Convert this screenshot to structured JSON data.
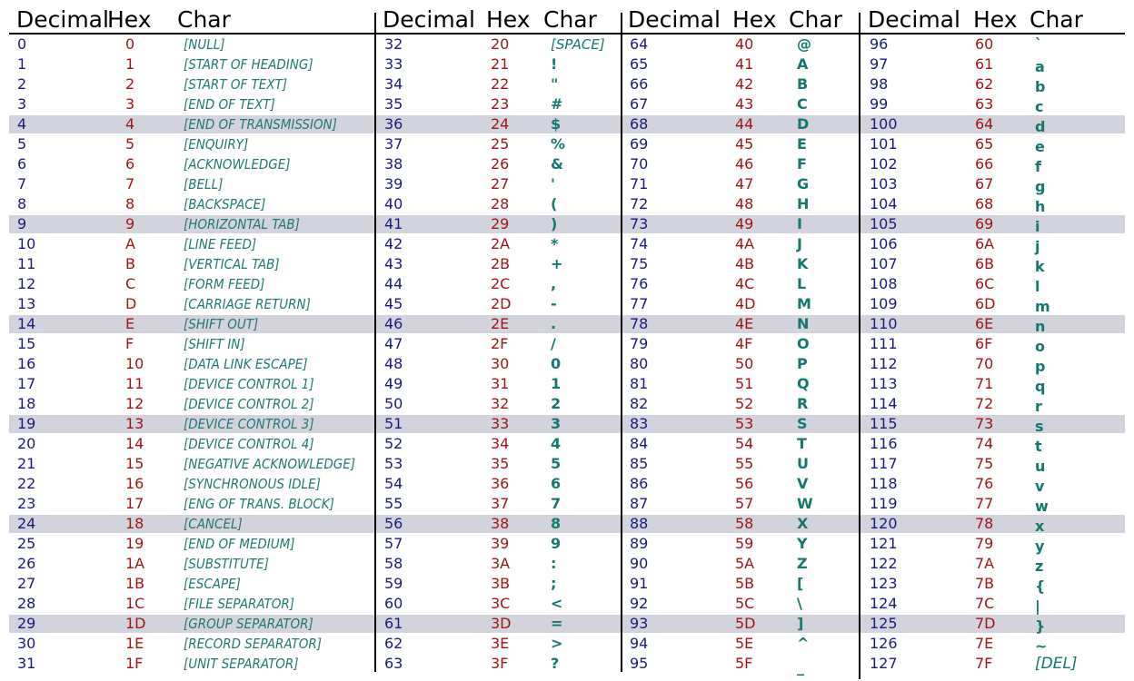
{
  "header": {
    "decimal": "Decimal",
    "hex": "Hex",
    "char": "Char"
  },
  "colors": {
    "decimal": "#1a1a80",
    "hex": "#a31515",
    "char": "#127870",
    "band": "#d3d3de"
  },
  "table": [
    [
      {
        "dec": "0",
        "hex": "0",
        "char": "[NULL]"
      },
      {
        "dec": "1",
        "hex": "1",
        "char": "[START OF HEADING]"
      },
      {
        "dec": "2",
        "hex": "2",
        "char": "[START OF TEXT]"
      },
      {
        "dec": "3",
        "hex": "3",
        "char": "[END OF TEXT]"
      },
      {
        "dec": "4",
        "hex": "4",
        "char": "[END OF TRANSMISSION]"
      },
      {
        "dec": "5",
        "hex": "5",
        "char": "[ENQUIRY]"
      },
      {
        "dec": "6",
        "hex": "6",
        "char": "[ACKNOWLEDGE]"
      },
      {
        "dec": "7",
        "hex": "7",
        "char": "[BELL]"
      },
      {
        "dec": "8",
        "hex": "8",
        "char": "[BACKSPACE]"
      },
      {
        "dec": "9",
        "hex": "9",
        "char": "[HORIZONTAL TAB]"
      },
      {
        "dec": "10",
        "hex": "A",
        "char": "[LINE FEED]"
      },
      {
        "dec": "11",
        "hex": "B",
        "char": "[VERTICAL TAB]"
      },
      {
        "dec": "12",
        "hex": "C",
        "char": "[FORM FEED]"
      },
      {
        "dec": "13",
        "hex": "D",
        "char": "[CARRIAGE RETURN]"
      },
      {
        "dec": "14",
        "hex": "E",
        "char": "[SHIFT OUT]"
      },
      {
        "dec": "15",
        "hex": "F",
        "char": "[SHIFT IN]"
      },
      {
        "dec": "16",
        "hex": "10",
        "char": "[DATA LINK ESCAPE]"
      },
      {
        "dec": "17",
        "hex": "11",
        "char": "[DEVICE CONTROL 1]"
      },
      {
        "dec": "18",
        "hex": "12",
        "char": "[DEVICE CONTROL 2]"
      },
      {
        "dec": "19",
        "hex": "13",
        "char": "[DEVICE CONTROL 3]"
      },
      {
        "dec": "20",
        "hex": "14",
        "char": "[DEVICE CONTROL 4]"
      },
      {
        "dec": "21",
        "hex": "15",
        "char": "[NEGATIVE ACKNOWLEDGE]"
      },
      {
        "dec": "22",
        "hex": "16",
        "char": "[SYNCHRONOUS IDLE]"
      },
      {
        "dec": "23",
        "hex": "17",
        "char": "[ENG OF TRANS. BLOCK]"
      },
      {
        "dec": "24",
        "hex": "18",
        "char": "[CANCEL]"
      },
      {
        "dec": "25",
        "hex": "19",
        "char": "[END OF MEDIUM]"
      },
      {
        "dec": "26",
        "hex": "1A",
        "char": "[SUBSTITUTE]"
      },
      {
        "dec": "27",
        "hex": "1B",
        "char": "[ESCAPE]"
      },
      {
        "dec": "28",
        "hex": "1C",
        "char": "[FILE SEPARATOR]"
      },
      {
        "dec": "29",
        "hex": "1D",
        "char": "[GROUP SEPARATOR]"
      },
      {
        "dec": "30",
        "hex": "1E",
        "char": "[RECORD SEPARATOR]"
      },
      {
        "dec": "31",
        "hex": "1F",
        "char": "[UNIT SEPARATOR]"
      }
    ],
    [
      {
        "dec": "32",
        "hex": "20",
        "char": "[SPACE]"
      },
      {
        "dec": "33",
        "hex": "21",
        "char": "!"
      },
      {
        "dec": "34",
        "hex": "22",
        "char": "\""
      },
      {
        "dec": "35",
        "hex": "23",
        "char": "#"
      },
      {
        "dec": "36",
        "hex": "24",
        "char": "$"
      },
      {
        "dec": "37",
        "hex": "25",
        "char": "%"
      },
      {
        "dec": "38",
        "hex": "26",
        "char": "&"
      },
      {
        "dec": "39",
        "hex": "27",
        "char": "'"
      },
      {
        "dec": "40",
        "hex": "28",
        "char": "("
      },
      {
        "dec": "41",
        "hex": "29",
        "char": ")"
      },
      {
        "dec": "42",
        "hex": "2A",
        "char": "*"
      },
      {
        "dec": "43",
        "hex": "2B",
        "char": "+"
      },
      {
        "dec": "44",
        "hex": "2C",
        "char": ","
      },
      {
        "dec": "45",
        "hex": "2D",
        "char": "-"
      },
      {
        "dec": "46",
        "hex": "2E",
        "char": "."
      },
      {
        "dec": "47",
        "hex": "2F",
        "char": "/"
      },
      {
        "dec": "48",
        "hex": "30",
        "char": "0"
      },
      {
        "dec": "49",
        "hex": "31",
        "char": "1"
      },
      {
        "dec": "50",
        "hex": "32",
        "char": "2"
      },
      {
        "dec": "51",
        "hex": "33",
        "char": "3"
      },
      {
        "dec": "52",
        "hex": "34",
        "char": "4"
      },
      {
        "dec": "53",
        "hex": "35",
        "char": "5"
      },
      {
        "dec": "54",
        "hex": "36",
        "char": "6"
      },
      {
        "dec": "55",
        "hex": "37",
        "char": "7"
      },
      {
        "dec": "56",
        "hex": "38",
        "char": "8"
      },
      {
        "dec": "57",
        "hex": "39",
        "char": "9"
      },
      {
        "dec": "58",
        "hex": "3A",
        "char": ":"
      },
      {
        "dec": "59",
        "hex": "3B",
        "char": ";"
      },
      {
        "dec": "60",
        "hex": "3C",
        "char": "<"
      },
      {
        "dec": "61",
        "hex": "3D",
        "char": "="
      },
      {
        "dec": "62",
        "hex": "3E",
        "char": ">"
      },
      {
        "dec": "63",
        "hex": "3F",
        "char": "?"
      }
    ],
    [
      {
        "dec": "64",
        "hex": "40",
        "char": "@"
      },
      {
        "dec": "65",
        "hex": "41",
        "char": "A"
      },
      {
        "dec": "66",
        "hex": "42",
        "char": "B"
      },
      {
        "dec": "67",
        "hex": "43",
        "char": "C"
      },
      {
        "dec": "68",
        "hex": "44",
        "char": "D"
      },
      {
        "dec": "69",
        "hex": "45",
        "char": "E"
      },
      {
        "dec": "70",
        "hex": "46",
        "char": "F"
      },
      {
        "dec": "71",
        "hex": "47",
        "char": "G"
      },
      {
        "dec": "72",
        "hex": "48",
        "char": "H"
      },
      {
        "dec": "73",
        "hex": "49",
        "char": "I"
      },
      {
        "dec": "74",
        "hex": "4A",
        "char": "J"
      },
      {
        "dec": "75",
        "hex": "4B",
        "char": "K"
      },
      {
        "dec": "76",
        "hex": "4C",
        "char": "L"
      },
      {
        "dec": "77",
        "hex": "4D",
        "char": "M"
      },
      {
        "dec": "78",
        "hex": "4E",
        "char": "N"
      },
      {
        "dec": "79",
        "hex": "4F",
        "char": "O"
      },
      {
        "dec": "80",
        "hex": "50",
        "char": "P"
      },
      {
        "dec": "81",
        "hex": "51",
        "char": "Q"
      },
      {
        "dec": "82",
        "hex": "52",
        "char": "R"
      },
      {
        "dec": "83",
        "hex": "53",
        "char": "S"
      },
      {
        "dec": "84",
        "hex": "54",
        "char": "T"
      },
      {
        "dec": "85",
        "hex": "55",
        "char": "U"
      },
      {
        "dec": "86",
        "hex": "56",
        "char": "V"
      },
      {
        "dec": "87",
        "hex": "57",
        "char": "W"
      },
      {
        "dec": "88",
        "hex": "58",
        "char": "X"
      },
      {
        "dec": "89",
        "hex": "59",
        "char": "Y"
      },
      {
        "dec": "90",
        "hex": "5A",
        "char": "Z"
      },
      {
        "dec": "91",
        "hex": "5B",
        "char": "["
      },
      {
        "dec": "92",
        "hex": "5C",
        "char": "\\"
      },
      {
        "dec": "93",
        "hex": "5D",
        "char": "]"
      },
      {
        "dec": "94",
        "hex": "5E",
        "char": "^"
      },
      {
        "dec": "95",
        "hex": "5F",
        "char": "_"
      }
    ],
    [
      {
        "dec": "96",
        "hex": "60",
        "char": "`"
      },
      {
        "dec": "97",
        "hex": "61",
        "char": "a"
      },
      {
        "dec": "98",
        "hex": "62",
        "char": "b"
      },
      {
        "dec": "99",
        "hex": "63",
        "char": "c"
      },
      {
        "dec": "100",
        "hex": "64",
        "char": "d"
      },
      {
        "dec": "101",
        "hex": "65",
        "char": "e"
      },
      {
        "dec": "102",
        "hex": "66",
        "char": "f"
      },
      {
        "dec": "103",
        "hex": "67",
        "char": "g"
      },
      {
        "dec": "104",
        "hex": "68",
        "char": "h"
      },
      {
        "dec": "105",
        "hex": "69",
        "char": "i"
      },
      {
        "dec": "106",
        "hex": "6A",
        "char": "j"
      },
      {
        "dec": "107",
        "hex": "6B",
        "char": "k"
      },
      {
        "dec": "108",
        "hex": "6C",
        "char": "l"
      },
      {
        "dec": "109",
        "hex": "6D",
        "char": "m"
      },
      {
        "dec": "110",
        "hex": "6E",
        "char": "n"
      },
      {
        "dec": "111",
        "hex": "6F",
        "char": "o"
      },
      {
        "dec": "112",
        "hex": "70",
        "char": "p"
      },
      {
        "dec": "113",
        "hex": "71",
        "char": "q"
      },
      {
        "dec": "114",
        "hex": "72",
        "char": "r"
      },
      {
        "dec": "115",
        "hex": "73",
        "char": "s"
      },
      {
        "dec": "116",
        "hex": "74",
        "char": "t"
      },
      {
        "dec": "117",
        "hex": "75",
        "char": "u"
      },
      {
        "dec": "118",
        "hex": "76",
        "char": "v"
      },
      {
        "dec": "119",
        "hex": "77",
        "char": "w"
      },
      {
        "dec": "120",
        "hex": "78",
        "char": "x"
      },
      {
        "dec": "121",
        "hex": "79",
        "char": "y"
      },
      {
        "dec": "122",
        "hex": "7A",
        "char": "z"
      },
      {
        "dec": "123",
        "hex": "7B",
        "char": "{"
      },
      {
        "dec": "124",
        "hex": "7C",
        "char": "|"
      },
      {
        "dec": "125",
        "hex": "7D",
        "char": "}"
      },
      {
        "dec": "126",
        "hex": "7E",
        "char": "~"
      },
      {
        "dec": "127",
        "hex": "7F",
        "char": "[DEL]"
      }
    ]
  ]
}
